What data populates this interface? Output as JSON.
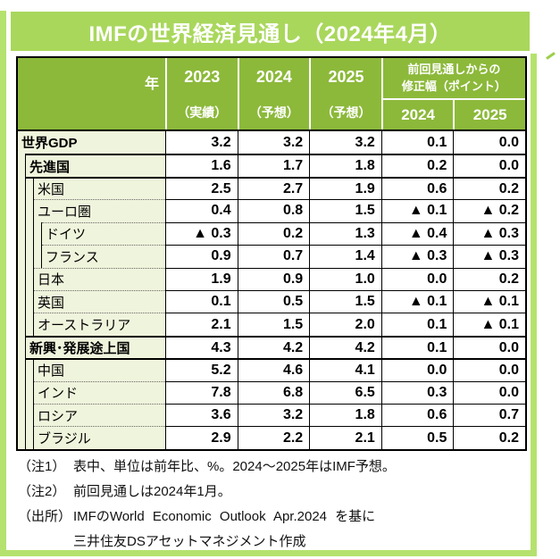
{
  "title": "IMFの世界経済見通し（2024年4月）",
  "colors": {
    "title_bg": "#a9d75c",
    "header_bg": "#8cb93a",
    "frame": "#b5e26e",
    "label_bg": "#eff4dc",
    "border": "#000000"
  },
  "table": {
    "header": {
      "year_label": "年",
      "year_columns": [
        {
          "year": "2023",
          "sub": "（実績）"
        },
        {
          "year": "2024",
          "sub": "（予想）"
        },
        {
          "year": "2025",
          "sub": "（予想）"
        }
      ],
      "revision_title_line1": "前回見通しからの",
      "revision_title_line2": "修正幅（ポイント）",
      "revision_years": [
        "2024",
        "2025"
      ]
    },
    "rows": [
      {
        "label": "世界GDP",
        "level": 0,
        "values": [
          "3.2",
          "3.2",
          "3.2",
          "0.1",
          "0.0"
        ]
      },
      {
        "label": "先進国",
        "level": 1,
        "values": [
          "1.6",
          "1.7",
          "1.8",
          "0.2",
          "0.0"
        ]
      },
      {
        "label": "米国",
        "level": 2,
        "values": [
          "2.5",
          "2.7",
          "1.9",
          "0.6",
          "0.2"
        ]
      },
      {
        "label": "ユーロ圏",
        "level": 2,
        "values": [
          "0.4",
          "0.8",
          "1.5",
          "▲ 0.1",
          "▲ 0.2"
        ]
      },
      {
        "label": "ドイツ",
        "level": 3,
        "values": [
          "▲ 0.3",
          "0.2",
          "1.3",
          "▲ 0.4",
          "▲ 0.3"
        ]
      },
      {
        "label": "フランス",
        "level": 3,
        "values": [
          "0.9",
          "0.7",
          "1.4",
          "▲ 0.3",
          "▲ 0.3"
        ]
      },
      {
        "label": "日本",
        "level": 2,
        "values": [
          "1.9",
          "0.9",
          "1.0",
          "0.0",
          "0.2"
        ]
      },
      {
        "label": "英国",
        "level": 2,
        "values": [
          "0.1",
          "0.5",
          "1.5",
          "▲ 0.1",
          "▲ 0.1"
        ]
      },
      {
        "label": "オーストラリア",
        "level": 2,
        "values": [
          "2.1",
          "1.5",
          "2.0",
          "0.1",
          "▲ 0.1"
        ]
      },
      {
        "label": "新興･発展途上国",
        "level": 1,
        "values": [
          "4.3",
          "4.2",
          "4.2",
          "0.1",
          "0.0"
        ]
      },
      {
        "label": "中国",
        "level": 2,
        "values": [
          "5.2",
          "4.6",
          "4.1",
          "0.0",
          "0.0"
        ]
      },
      {
        "label": "インド",
        "level": 2,
        "values": [
          "7.8",
          "6.8",
          "6.5",
          "0.3",
          "0.0"
        ]
      },
      {
        "label": "ロシア",
        "level": 2,
        "values": [
          "3.6",
          "3.2",
          "1.8",
          "0.6",
          "0.7"
        ]
      },
      {
        "label": "ブラジル",
        "level": 2,
        "values": [
          "2.9",
          "2.2",
          "2.1",
          "0.5",
          "0.2"
        ]
      }
    ]
  },
  "notes": {
    "n1": {
      "prefix": "（注1）",
      "text": "表中、単位は前年比、%。2024～2025年はIMF予想。"
    },
    "n2": {
      "prefix": "（注2）",
      "text": "前回見通しは2024年1月。"
    },
    "src": {
      "prefix": "（出所）",
      "line1": "IMFのWorld Economic Outlook Apr.2024 を基に",
      "line2": "三井住友DSアセットマネジメント作成"
    }
  },
  "chart_data": {
    "type": "table",
    "title": "IMFの世界経済見通し（2024年4月）",
    "unit": "前年比、%",
    "columns": [
      "2023（実績）",
      "2024（予想）",
      "2025（予想）",
      "前回見通しからの修正幅（ポイント）2024",
      "前回見通しからの修正幅（ポイント）2025"
    ],
    "rows": [
      {
        "region": "世界GDP",
        "values": [
          3.2,
          3.2,
          3.2,
          0.1,
          0.0
        ]
      },
      {
        "region": "先進国",
        "values": [
          1.6,
          1.7,
          1.8,
          0.2,
          0.0
        ]
      },
      {
        "region": "米国",
        "values": [
          2.5,
          2.7,
          1.9,
          0.6,
          0.2
        ]
      },
      {
        "region": "ユーロ圏",
        "values": [
          0.4,
          0.8,
          1.5,
          -0.1,
          -0.2
        ]
      },
      {
        "region": "ドイツ",
        "values": [
          -0.3,
          0.2,
          1.3,
          -0.4,
          -0.3
        ]
      },
      {
        "region": "フランス",
        "values": [
          0.9,
          0.7,
          1.4,
          -0.3,
          -0.3
        ]
      },
      {
        "region": "日本",
        "values": [
          1.9,
          0.9,
          1.0,
          0.0,
          0.2
        ]
      },
      {
        "region": "英国",
        "values": [
          0.1,
          0.5,
          1.5,
          -0.1,
          -0.1
        ]
      },
      {
        "region": "オーストラリア",
        "values": [
          2.1,
          1.5,
          2.0,
          0.1,
          -0.1
        ]
      },
      {
        "region": "新興･発展途上国",
        "values": [
          4.3,
          4.2,
          4.2,
          0.1,
          0.0
        ]
      },
      {
        "region": "中国",
        "values": [
          5.2,
          4.6,
          4.1,
          0.0,
          0.0
        ]
      },
      {
        "region": "インド",
        "values": [
          7.8,
          6.8,
          6.5,
          0.3,
          0.0
        ]
      },
      {
        "region": "ロシア",
        "values": [
          3.6,
          3.2,
          1.8,
          0.6,
          0.7
        ]
      },
      {
        "region": "ブラジル",
        "values": [
          2.9,
          2.2,
          2.1,
          0.5,
          0.2
        ]
      }
    ]
  }
}
